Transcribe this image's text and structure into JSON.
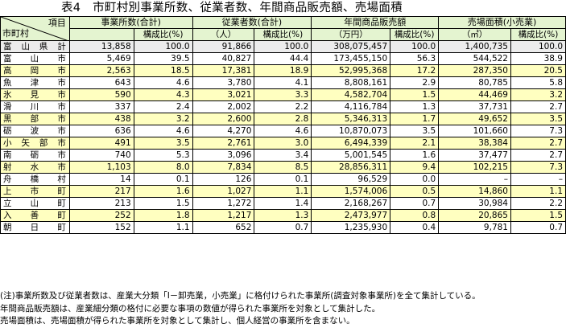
{
  "title": "表4　市町村別事業所数、従業者数、年間商品販売額、売場面積",
  "header": {
    "corner_top": "項目",
    "corner_bottom": "市町村",
    "groups": [
      "事業所数(合計)",
      "従業者数(合計)",
      "年間商品販売額",
      "売場面積(小売業)"
    ],
    "units": [
      "",
      "（人）",
      "（万円）",
      "（㎡）"
    ],
    "ratio": "構成比(%)"
  },
  "rows": [
    {
      "name": "富山県計",
      "style": "total",
      "v": [
        "13,858",
        "100.0",
        "91,866",
        "100.0",
        "308,075,457",
        "100.0",
        "1,400,735",
        "100.0"
      ]
    },
    {
      "name": "富山市",
      "style": "",
      "v": [
        "5,469",
        "39.5",
        "40,827",
        "44.4",
        "173,455,150",
        "56.3",
        "544,522",
        "38.9"
      ]
    },
    {
      "name": "高岡市",
      "style": "yel",
      "v": [
        "2,563",
        "18.5",
        "17,381",
        "18.9",
        "52,995,368",
        "17.2",
        "287,350",
        "20.5"
      ]
    },
    {
      "name": "魚津市",
      "style": "",
      "v": [
        "643",
        "4.6",
        "3,780",
        "4.1",
        "8,808,161",
        "2.9",
        "80,785",
        "5.8"
      ]
    },
    {
      "name": "氷見市",
      "style": "yel",
      "v": [
        "590",
        "4.3",
        "3,021",
        "3.3",
        "4,582,704",
        "1.5",
        "44,469",
        "3.2"
      ]
    },
    {
      "name": "滑川市",
      "style": "",
      "v": [
        "337",
        "2.4",
        "2,002",
        "2.2",
        "4,116,784",
        "1.3",
        "37,731",
        "2.7"
      ]
    },
    {
      "name": "黒部市",
      "style": "yel",
      "v": [
        "438",
        "3.2",
        "2,600",
        "2.8",
        "5,346,313",
        "1.7",
        "49,652",
        "3.5"
      ]
    },
    {
      "name": "砺波市",
      "style": "",
      "v": [
        "636",
        "4.6",
        "4,270",
        "4.6",
        "10,870,073",
        "3.5",
        "101,660",
        "7.3"
      ]
    },
    {
      "name": "小矢部市",
      "style": "yel",
      "v": [
        "491",
        "3.5",
        "2,761",
        "3.0",
        "6,494,339",
        "2.1",
        "38,384",
        "2.7"
      ]
    },
    {
      "name": "南砺市",
      "style": "",
      "v": [
        "740",
        "5.3",
        "3,096",
        "3.4",
        "5,001,545",
        "1.6",
        "37,477",
        "2.7"
      ]
    },
    {
      "name": "射水市",
      "style": "yel",
      "v": [
        "1,103",
        "8.0",
        "7,834",
        "8.5",
        "28,856,311",
        "9.4",
        "102,215",
        "7.3"
      ]
    },
    {
      "name": "舟橋村",
      "style": "",
      "v": [
        "14",
        "0.1",
        "126",
        "0.1",
        "96,529",
        "0.0",
        "–",
        "–"
      ]
    },
    {
      "name": "上市町",
      "style": "yel",
      "v": [
        "217",
        "1.6",
        "1,027",
        "1.1",
        "1,574,006",
        "0.5",
        "14,860",
        "1.1"
      ]
    },
    {
      "name": "立山町",
      "style": "",
      "v": [
        "213",
        "1.5",
        "1,272",
        "1.4",
        "2,168,267",
        "0.7",
        "30,984",
        "2.2"
      ]
    },
    {
      "name": "入善町",
      "style": "yel",
      "v": [
        "252",
        "1.8",
        "1,217",
        "1.3",
        "2,473,977",
        "0.8",
        "20,865",
        "1.5"
      ]
    },
    {
      "name": "朝日町",
      "style": "",
      "v": [
        "152",
        "1.1",
        "652",
        "0.7",
        "1,235,930",
        "0.4",
        "9,781",
        "0.7"
      ]
    }
  ],
  "notes": [
    "(注)事業所数及び従業者数は、産業大分類「I－卸売業，小売業」に格付けられた事業所(調査対象事業所)を全て集計している。",
    "年間商品販売額は、産業細分類の格付に必要な事項の数値が得られた事業所を対象として集計した。",
    "売場面積は、売場面積が得られた事業所を対象として集計し、個人経営の事業所を含まない。"
  ]
}
